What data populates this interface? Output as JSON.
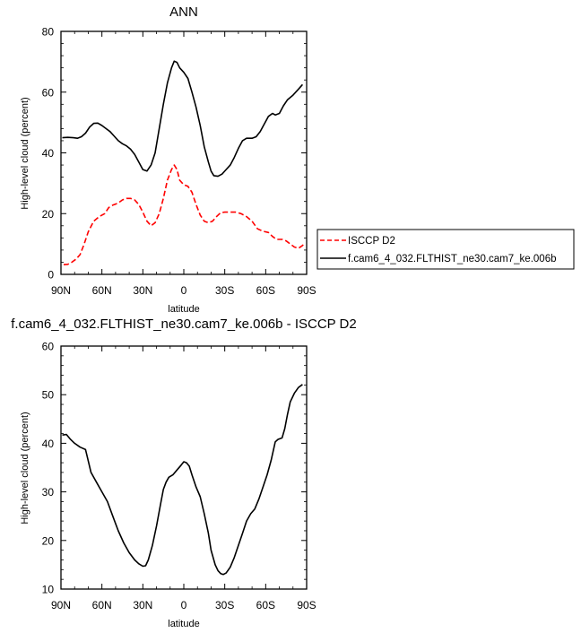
{
  "chart_data": [
    {
      "type": "line",
      "title": "ANN",
      "xlabel": "latitude",
      "ylabel": "High-level cloud (percent)",
      "xlim": [
        -90,
        90
      ],
      "ylim": [
        0,
        80
      ],
      "x_ticks": [
        -90,
        -60,
        -30,
        0,
        30,
        60,
        90
      ],
      "x_tick_labels": [
        "90N",
        "60N",
        "30N",
        "0",
        "30S",
        "60S",
        "90S"
      ],
      "y_ticks": [
        0,
        20,
        40,
        60,
        80
      ],
      "y_tick_labels": [
        "0",
        "20",
        "40",
        "60",
        "80"
      ],
      "legend_position": "right",
      "series": [
        {
          "name": "ISCCP D2",
          "color": "#ff0000",
          "dash": "dashed",
          "points": [
            [
              -88,
              3.2
            ],
            [
              -85,
              3.3
            ],
            [
              -82,
              4
            ],
            [
              -79,
              5
            ],
            [
              -76,
              6.5
            ],
            [
              -73,
              10
            ],
            [
              -70,
              14
            ],
            [
              -66,
              17.5
            ],
            [
              -62,
              19
            ],
            [
              -58,
              20
            ],
            [
              -55,
              22
            ],
            [
              -52,
              22.8
            ],
            [
              -48,
              23.5
            ],
            [
              -45,
              24.5
            ],
            [
              -42,
              25
            ],
            [
              -39,
              25
            ],
            [
              -36,
              24.5
            ],
            [
              -33,
              23
            ],
            [
              -30,
              20.5
            ],
            [
              -27,
              17.5
            ],
            [
              -24,
              16
            ],
            [
              -21,
              17
            ],
            [
              -18,
              20
            ],
            [
              -15,
              25
            ],
            [
              -12,
              31
            ],
            [
              -9,
              34.5
            ],
            [
              -7,
              36
            ],
            [
              -5,
              34.5
            ],
            [
              -3,
              31
            ],
            [
              0,
              29.5
            ],
            [
              3,
              29
            ],
            [
              6,
              27
            ],
            [
              9,
              23
            ],
            [
              12,
              19.5
            ],
            [
              15,
              17.5
            ],
            [
              18,
              17
            ],
            [
              21,
              17.5
            ],
            [
              24,
              19
            ],
            [
              27,
              20.3
            ],
            [
              30,
              20.5
            ],
            [
              34,
              20.5
            ],
            [
              38,
              20.5
            ],
            [
              42,
              20
            ],
            [
              46,
              19
            ],
            [
              50,
              17.5
            ],
            [
              54,
              15
            ],
            [
              58,
              14.2
            ],
            [
              62,
              13.8
            ],
            [
              65,
              12.5
            ],
            [
              68,
              11.5
            ],
            [
              72,
              11.5
            ],
            [
              75,
              11
            ],
            [
              78,
              10
            ],
            [
              81,
              9
            ],
            [
              84,
              8.6
            ],
            [
              87,
              9.5
            ],
            [
              89,
              10.3
            ]
          ]
        },
        {
          "name": "f.cam6_4_032.FLTHIST_ne30.cam7_ke.006b",
          "color": "#000000",
          "dash": "solid",
          "points": [
            [
              -89,
              45
            ],
            [
              -85,
              45.1
            ],
            [
              -81,
              45
            ],
            [
              -78,
              44.8
            ],
            [
              -75,
              45.3
            ],
            [
              -72,
              46.5
            ],
            [
              -69,
              48.5
            ],
            [
              -66,
              49.7
            ],
            [
              -63,
              49.8
            ],
            [
              -60,
              49
            ],
            [
              -57,
              48
            ],
            [
              -54,
              47
            ],
            [
              -51,
              45.5
            ],
            [
              -48,
              44
            ],
            [
              -45,
              43
            ],
            [
              -42,
              42.3
            ],
            [
              -39,
              41.2
            ],
            [
              -36,
              39.5
            ],
            [
              -33,
              37
            ],
            [
              -30,
              34.5
            ],
            [
              -27,
              34
            ],
            [
              -24,
              36
            ],
            [
              -21,
              40
            ],
            [
              -18,
              48
            ],
            [
              -15,
              56
            ],
            [
              -12,
              63
            ],
            [
              -9,
              68
            ],
            [
              -7,
              70.2
            ],
            [
              -5,
              69.8
            ],
            [
              -3,
              68
            ],
            [
              0,
              66.5
            ],
            [
              3,
              64.5
            ],
            [
              6,
              60
            ],
            [
              9,
              55
            ],
            [
              12,
              49
            ],
            [
              15,
              42
            ],
            [
              18,
              37
            ],
            [
              20,
              34
            ],
            [
              22,
              32.5
            ],
            [
              25,
              32.3
            ],
            [
              28,
              33
            ],
            [
              31,
              34.5
            ],
            [
              34,
              36
            ],
            [
              37,
              38.5
            ],
            [
              40,
              41.5
            ],
            [
              43,
              44
            ],
            [
              46,
              44.8
            ],
            [
              50,
              44.8
            ],
            [
              53,
              45.3
            ],
            [
              56,
              47
            ],
            [
              59,
              49.5
            ],
            [
              62,
              52
            ],
            [
              65,
              53
            ],
            [
              67,
              52.5
            ],
            [
              70,
              53
            ],
            [
              73,
              55.5
            ],
            [
              76,
              57.5
            ],
            [
              80,
              59
            ],
            [
              84,
              61
            ],
            [
              87,
              62.5
            ]
          ]
        }
      ]
    },
    {
      "type": "line",
      "title": "f.cam6_4_032.FLTHIST_ne30.cam7_ke.006b - ISCCP D2",
      "xlabel": "latitude",
      "ylabel": "High-level cloud (percent)",
      "xlim": [
        -90,
        90
      ],
      "ylim": [
        10,
        60
      ],
      "x_ticks": [
        -90,
        -60,
        -30,
        0,
        30,
        60,
        90
      ],
      "x_tick_labels": [
        "90N",
        "60N",
        "30N",
        "0",
        "30S",
        "60S",
        "90S"
      ],
      "y_ticks": [
        10,
        20,
        30,
        40,
        50,
        60
      ],
      "y_tick_labels": [
        "10",
        "20",
        "30",
        "40",
        "50",
        "60"
      ],
      "series": [
        {
          "color": "#000000",
          "dash": "solid",
          "points": [
            [
              -89,
              41.7
            ],
            [
              -86,
              41.8
            ],
            [
              -83,
              40.8
            ],
            [
              -80,
              40
            ],
            [
              -76,
              39.2
            ],
            [
              -72,
              38.7
            ],
            [
              -68,
              34
            ],
            [
              -64,
              32
            ],
            [
              -60,
              30
            ],
            [
              -56,
              28
            ],
            [
              -52,
              25
            ],
            [
              -48,
              22
            ],
            [
              -44,
              19.5
            ],
            [
              -40,
              17.5
            ],
            [
              -36,
              16
            ],
            [
              -33,
              15.2
            ],
            [
              -30,
              14.7
            ],
            [
              -28,
              14.8
            ],
            [
              -26,
              16
            ],
            [
              -23,
              19
            ],
            [
              -20,
              23
            ],
            [
              -17,
              27.5
            ],
            [
              -15,
              30.5
            ],
            [
              -13,
              32
            ],
            [
              -11,
              33
            ],
            [
              -8,
              33.5
            ],
            [
              -5,
              34.5
            ],
            [
              -2,
              35.5
            ],
            [
              0,
              36.2
            ],
            [
              2,
              36
            ],
            [
              4,
              35.3
            ],
            [
              6,
              33.5
            ],
            [
              9,
              31
            ],
            [
              12,
              29
            ],
            [
              15,
              25.5
            ],
            [
              18,
              21.5
            ],
            [
              20,
              18
            ],
            [
              23,
              15
            ],
            [
              25,
              13.8
            ],
            [
              27,
              13.2
            ],
            [
              29,
              13
            ],
            [
              31,
              13.3
            ],
            [
              34,
              14.5
            ],
            [
              37,
              16.5
            ],
            [
              40,
              19
            ],
            [
              43,
              21.5
            ],
            [
              46,
              24
            ],
            [
              49,
              25.5
            ],
            [
              52,
              26.5
            ],
            [
              55,
              28.5
            ],
            [
              58,
              31
            ],
            [
              61,
              33.5
            ],
            [
              64,
              36.5
            ],
            [
              67,
              40.3
            ],
            [
              69,
              40.8
            ],
            [
              72,
              41.1
            ],
            [
              74,
              43
            ],
            [
              76,
              46
            ],
            [
              78,
              48.5
            ],
            [
              81,
              50.3
            ],
            [
              84,
              51.5
            ],
            [
              87,
              52.1
            ]
          ]
        }
      ]
    }
  ]
}
